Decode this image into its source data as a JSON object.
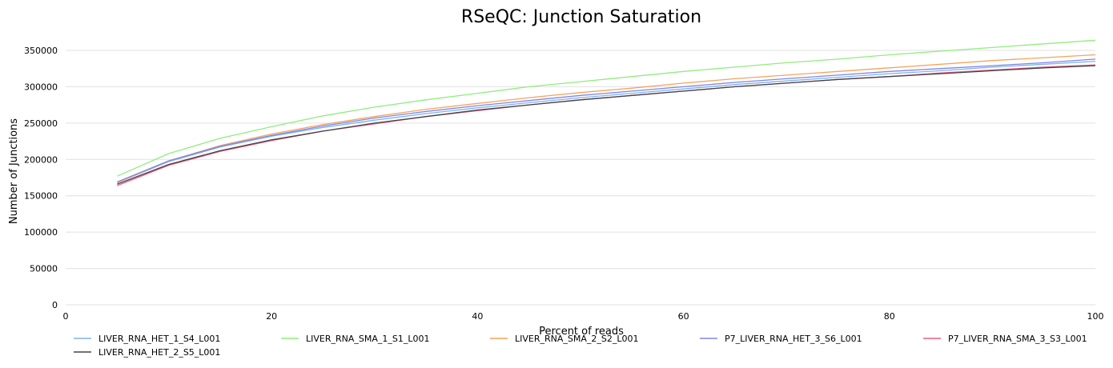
{
  "chart_data": {
    "type": "line",
    "title": "RSeQC: Junction Saturation",
    "xlabel": "Percent of reads",
    "ylabel": "Number of Junctions",
    "xlim": [
      0,
      100
    ],
    "ylim": [
      0,
      350000
    ],
    "x_ticks": [
      "0",
      "20",
      "40",
      "60",
      "80",
      "100"
    ],
    "y_ticks": [
      "0",
      "50000",
      "100000",
      "150000",
      "200000",
      "250000",
      "300000",
      "350000"
    ],
    "grid": true,
    "legend_position": "bottom",
    "x": [
      5,
      10,
      15,
      20,
      25,
      30,
      35,
      40,
      45,
      50,
      55,
      60,
      65,
      70,
      75,
      80,
      85,
      90,
      95,
      100
    ],
    "series": [
      {
        "name": "LIVER_RNA_HET_1_S4_L001",
        "color": "#7cb5ec",
        "values": [
          168000,
          197000,
          217000,
          232000,
          244000,
          254000,
          263000,
          271000,
          278000,
          285000,
          291000,
          297000,
          303000,
          308000,
          313000,
          318000,
          322000,
          327000,
          331000,
          335000
        ]
      },
      {
        "name": "LIVER_RNA_SMA_1_S1_L001",
        "color": "#90ed7d",
        "values": [
          177000,
          208000,
          229000,
          245000,
          260000,
          272000,
          282000,
          291000,
          300000,
          307000,
          314000,
          321000,
          327000,
          333000,
          338000,
          344000,
          349000,
          354000,
          359000,
          364000
        ]
      },
      {
        "name": "LIVER_RNA_SMA_2_S2_L001",
        "color": "#f7a35c",
        "values": [
          168000,
          198000,
          219000,
          235000,
          248000,
          259000,
          269000,
          277000,
          285000,
          292000,
          298000,
          305000,
          311000,
          316000,
          321000,
          326000,
          331000,
          336000,
          340000,
          344000
        ]
      },
      {
        "name": "P7_LIVER_RNA_HET_3_S6_L001",
        "color": "#8085e9",
        "values": [
          169000,
          198000,
          218000,
          233000,
          246000,
          257000,
          266000,
          274000,
          281000,
          288000,
          294000,
          300000,
          306000,
          311000,
          316000,
          321000,
          325000,
          329000,
          333000,
          338000
        ]
      },
      {
        "name": "P7_LIVER_RNA_SMA_3_S3_L001",
        "color": "#f15c80",
        "values": [
          164000,
          192000,
          211000,
          226000,
          239000,
          249000,
          259000,
          267000,
          275000,
          282000,
          288000,
          294000,
          300000,
          305000,
          310000,
          314000,
          319000,
          323000,
          327000,
          330000
        ]
      },
      {
        "name": "LIVER_RNA_HET_2_S5_L001",
        "color": "#434348",
        "values": [
          166000,
          193000,
          212000,
          227000,
          239000,
          250000,
          259000,
          268000,
          275000,
          282000,
          288000,
          294000,
          300000,
          305000,
          310000,
          314000,
          318000,
          322000,
          326000,
          329000
        ]
      }
    ]
  }
}
